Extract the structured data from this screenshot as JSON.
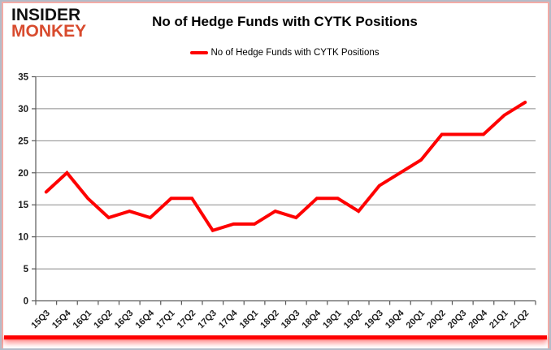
{
  "logo": {
    "line1": "INSIDER",
    "line2": "MONKEY"
  },
  "header": {
    "title": "No of Hedge Funds with CYTK Positions"
  },
  "legend": {
    "label": "No of Hedge Funds with CYTK Positions"
  },
  "colors": {
    "series_line": "#fe0000",
    "logo_accent": "#d84b2e",
    "gridline": "#8c8c8c",
    "axis": "#595959",
    "tick_label": "#1f1f1f",
    "bottom_bar": "#fe0000"
  },
  "chart_data": {
    "type": "line",
    "title": "No of Hedge Funds with CYTK Positions",
    "categories": [
      "15Q3",
      "15Q4",
      "16Q1",
      "16Q2",
      "16Q3",
      "16Q4",
      "17Q1",
      "17Q2",
      "17Q3",
      "17Q4",
      "18Q1",
      "18Q2",
      "18Q3",
      "18Q4",
      "19Q1",
      "19Q2",
      "19Q3",
      "19Q4",
      "20Q1",
      "20Q2",
      "20Q3",
      "20Q4",
      "21Q1",
      "21Q2"
    ],
    "series": [
      {
        "name": "No of Hedge Funds with CYTK Positions",
        "color": "#fe0000",
        "values": [
          17,
          20,
          16,
          13,
          14,
          13,
          16,
          16,
          11,
          12,
          12,
          14,
          13,
          16,
          16,
          14,
          18,
          20,
          22,
          26,
          26,
          26,
          29,
          31
        ]
      }
    ],
    "xlabel": "",
    "ylabel": "",
    "ylim": [
      0,
      35
    ],
    "ytick_step": 5,
    "grid": "horizontal",
    "legend_position": "top-center"
  }
}
